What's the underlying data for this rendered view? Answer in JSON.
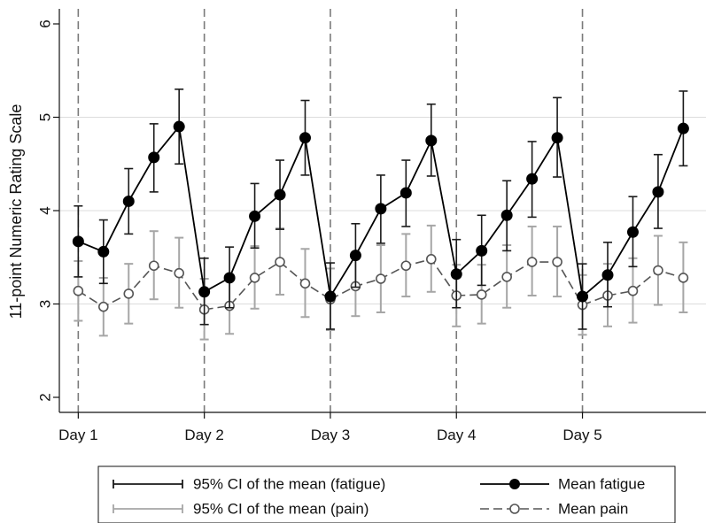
{
  "chart_data": {
    "type": "line",
    "title": "",
    "xlabel": "",
    "ylabel": "11-point Numeric Rating Scale",
    "ylim": [
      2,
      6
    ],
    "yticks": [
      2,
      3,
      4,
      5,
      6
    ],
    "xlim": [
      0.85,
      5.98
    ],
    "day_ticks": [
      {
        "x": 1,
        "label": "Day 1"
      },
      {
        "x": 2,
        "label": "Day 2"
      },
      {
        "x": 3,
        "label": "Day 3"
      },
      {
        "x": 4,
        "label": "Day 4"
      },
      {
        "x": 5,
        "label": "Day 5"
      }
    ],
    "day_lines": [
      1,
      2,
      3,
      4,
      5
    ],
    "grid": "horizontal",
    "legend_position": "bottom",
    "x": [
      1.0,
      1.2,
      1.4,
      1.6,
      1.8,
      2.0,
      2.2,
      2.4,
      2.6,
      2.8,
      3.0,
      3.2,
      3.4,
      3.6,
      3.8,
      4.0,
      4.2,
      4.4,
      4.6,
      4.8,
      5.0,
      5.2,
      5.4,
      5.6,
      5.8
    ],
    "series": [
      {
        "name": "Mean fatigue",
        "ci_name": "95% CI of the mean (fatigue)",
        "style": "solid-filled",
        "color": "#000000",
        "ci_color": "#1a1a1a",
        "mean": [
          3.67,
          3.56,
          4.1,
          4.57,
          4.9,
          3.13,
          3.28,
          3.94,
          4.17,
          4.78,
          3.08,
          3.52,
          4.02,
          4.19,
          4.75,
          3.32,
          3.57,
          3.95,
          4.34,
          4.78,
          3.08,
          3.31,
          3.77,
          4.2,
          4.88
        ],
        "lower": [
          3.29,
          3.22,
          3.75,
          4.2,
          4.5,
          2.78,
          2.96,
          3.6,
          3.8,
          4.38,
          2.73,
          3.18,
          3.65,
          3.83,
          4.37,
          2.96,
          3.2,
          3.57,
          3.93,
          4.36,
          2.73,
          2.97,
          3.4,
          3.81,
          4.48
        ],
        "upper": [
          4.05,
          3.9,
          4.45,
          4.93,
          5.3,
          3.49,
          3.61,
          4.29,
          4.54,
          5.18,
          3.44,
          3.86,
          4.38,
          4.54,
          5.14,
          3.69,
          3.95,
          4.32,
          4.74,
          5.21,
          3.43,
          3.66,
          4.15,
          4.6,
          5.28
        ]
      },
      {
        "name": "Mean pain",
        "ci_name": "95% CI of the mean (pain)",
        "style": "dashed-hollow",
        "color": "#555555",
        "ci_color": "#a6a6a6",
        "mean": [
          3.14,
          2.97,
          3.11,
          3.41,
          3.33,
          2.94,
          2.98,
          3.28,
          3.45,
          3.22,
          3.05,
          3.19,
          3.27,
          3.41,
          3.48,
          3.09,
          3.1,
          3.29,
          3.45,
          3.45,
          2.99,
          3.09,
          3.14,
          3.36,
          3.28
        ],
        "lower": [
          2.82,
          2.66,
          2.79,
          3.05,
          2.96,
          2.62,
          2.68,
          2.95,
          3.1,
          2.86,
          2.72,
          2.87,
          2.91,
          3.08,
          3.13,
          2.76,
          2.79,
          2.96,
          3.09,
          3.08,
          2.67,
          2.76,
          2.8,
          2.99,
          2.91
        ],
        "upper": [
          3.46,
          3.28,
          3.43,
          3.78,
          3.71,
          3.27,
          3.29,
          3.62,
          3.81,
          3.59,
          3.38,
          3.51,
          3.63,
          3.75,
          3.84,
          3.42,
          3.42,
          3.63,
          3.83,
          3.83,
          3.31,
          3.43,
          3.49,
          3.73,
          3.66
        ]
      }
    ],
    "legend": [
      {
        "key": "ci_fatigue",
        "label": "95% CI of the mean (fatigue)"
      },
      {
        "key": "mean_fatigue",
        "label": "Mean fatigue"
      },
      {
        "key": "ci_pain",
        "label": "95% CI of the mean (pain)"
      },
      {
        "key": "mean_pain",
        "label": "Mean pain"
      }
    ]
  }
}
